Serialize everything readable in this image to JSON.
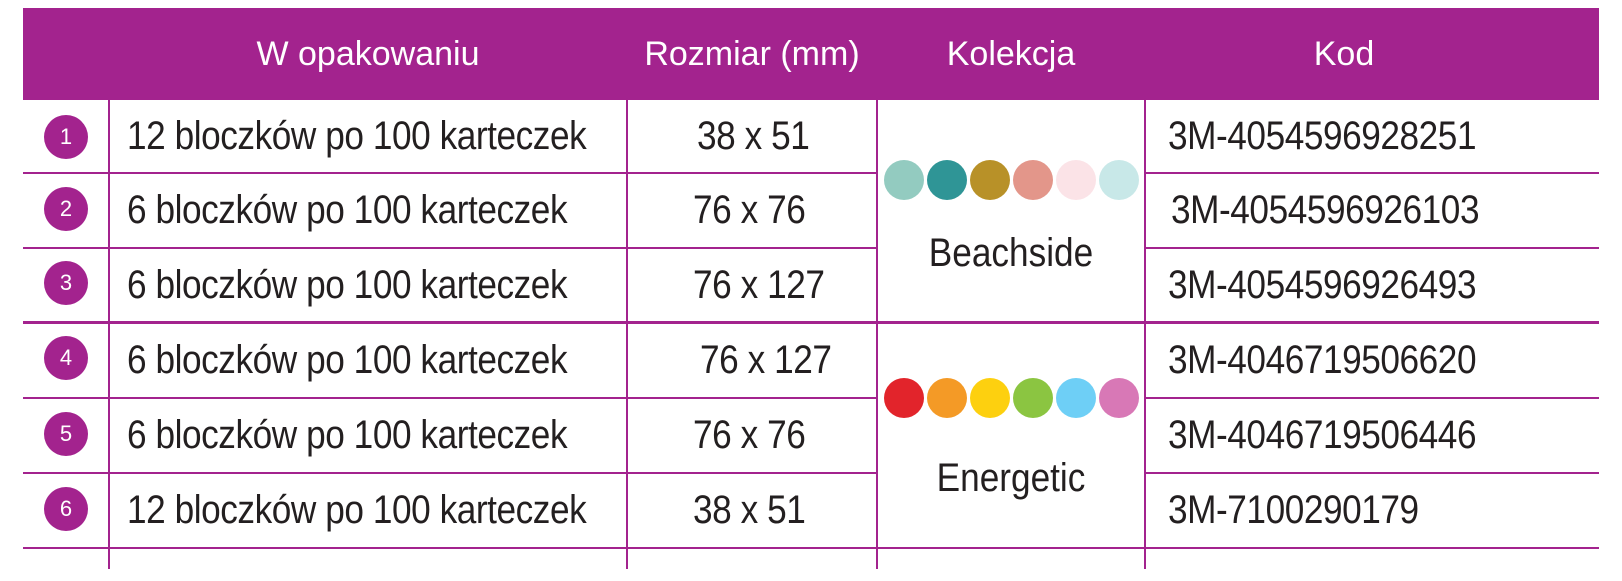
{
  "colors": {
    "header_bg": "#a3238e",
    "row_lines": "#a3238e",
    "number_bg": "#a3238e"
  },
  "header": {
    "package": "W opakowaniu",
    "size": "Rozmiar (mm)",
    "collection": "Kolekcja",
    "code": "Kod"
  },
  "rows": [
    {
      "num": "1",
      "package": "12 bloczków po 100 karteczek",
      "size": "38 x 51",
      "code": "3M-4054596928251"
    },
    {
      "num": "2",
      "package": "6 bloczków po 100 karteczek",
      "size": "76 x 76",
      "code": "3M-4054596926103"
    },
    {
      "num": "3",
      "package": "6 bloczków po 100 karteczek",
      "size": "76 x 127",
      "code": "3M-4054596926493"
    },
    {
      "num": "4",
      "package": "6 bloczków po 100 karteczek",
      "size": "76 x 127",
      "code": "3M-4046719506620"
    },
    {
      "num": "5",
      "package": "6 bloczków po 100 karteczek",
      "size": "76 x 76",
      "code": "3M-4046719506446"
    },
    {
      "num": "6",
      "package": "12 bloczków po 100 karteczek",
      "size": "38 x 51",
      "code": "3M-7100290179"
    }
  ],
  "collections": [
    {
      "name": "Beachside",
      "swatches": [
        "#93cbc0",
        "#2f9596",
        "#b89128",
        "#e3968a",
        "#fbe3e7",
        "#c8e8e8"
      ]
    },
    {
      "name": "Energetic",
      "swatches": [
        "#e2242b",
        "#f49a26",
        "#fdd00f",
        "#8bc541",
        "#6ecff6",
        "#d878b6"
      ]
    }
  ]
}
